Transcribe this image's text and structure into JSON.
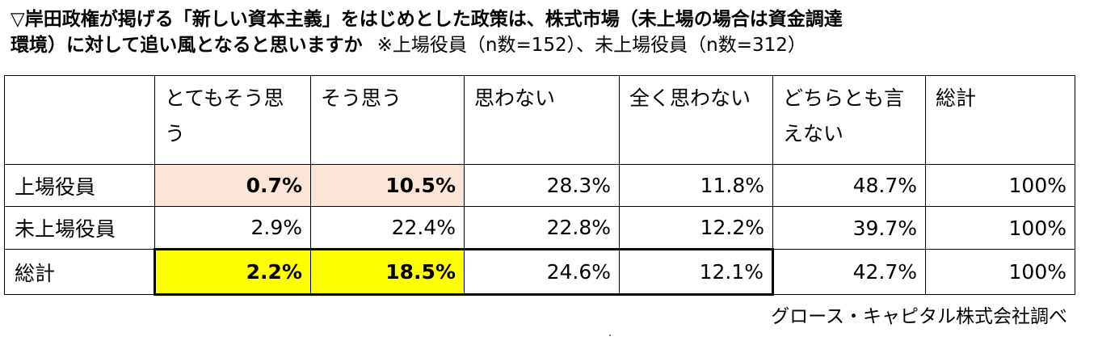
{
  "title": {
    "line1": "▽岸田政権が掲げる「新しい資本主義」をはじめとした政策は、株式市場（未上場の場合は資金調達",
    "line2": "環境）に対して追い風となると思いますか",
    "note": "※上場役員（n数=152）、未上場役員（n数=312）"
  },
  "table": {
    "headers": [
      "",
      "とてもそう思う",
      "そう思う",
      "思わない",
      "全く思わない",
      "どちらとも言えない",
      "総計"
    ],
    "rows": [
      {
        "label": "上場役員",
        "values": [
          "0.7%",
          "10.5%",
          "28.3%",
          "11.8%",
          "48.7%",
          "100%"
        ]
      },
      {
        "label": "未上場役員",
        "values": [
          "2.9%",
          "22.4%",
          "22.8%",
          "12.2%",
          "39.7%",
          "100%"
        ]
      },
      {
        "label": "総計",
        "values": [
          "2.2%",
          "18.5%",
          "24.6%",
          "12.1%",
          "42.7%",
          "100%"
        ]
      }
    ]
  },
  "colors": {
    "highlight_peach": "#fce4d6",
    "highlight_yellow": "#ffff00"
  },
  "source": "グロース・キャピタル株式会社調べ"
}
